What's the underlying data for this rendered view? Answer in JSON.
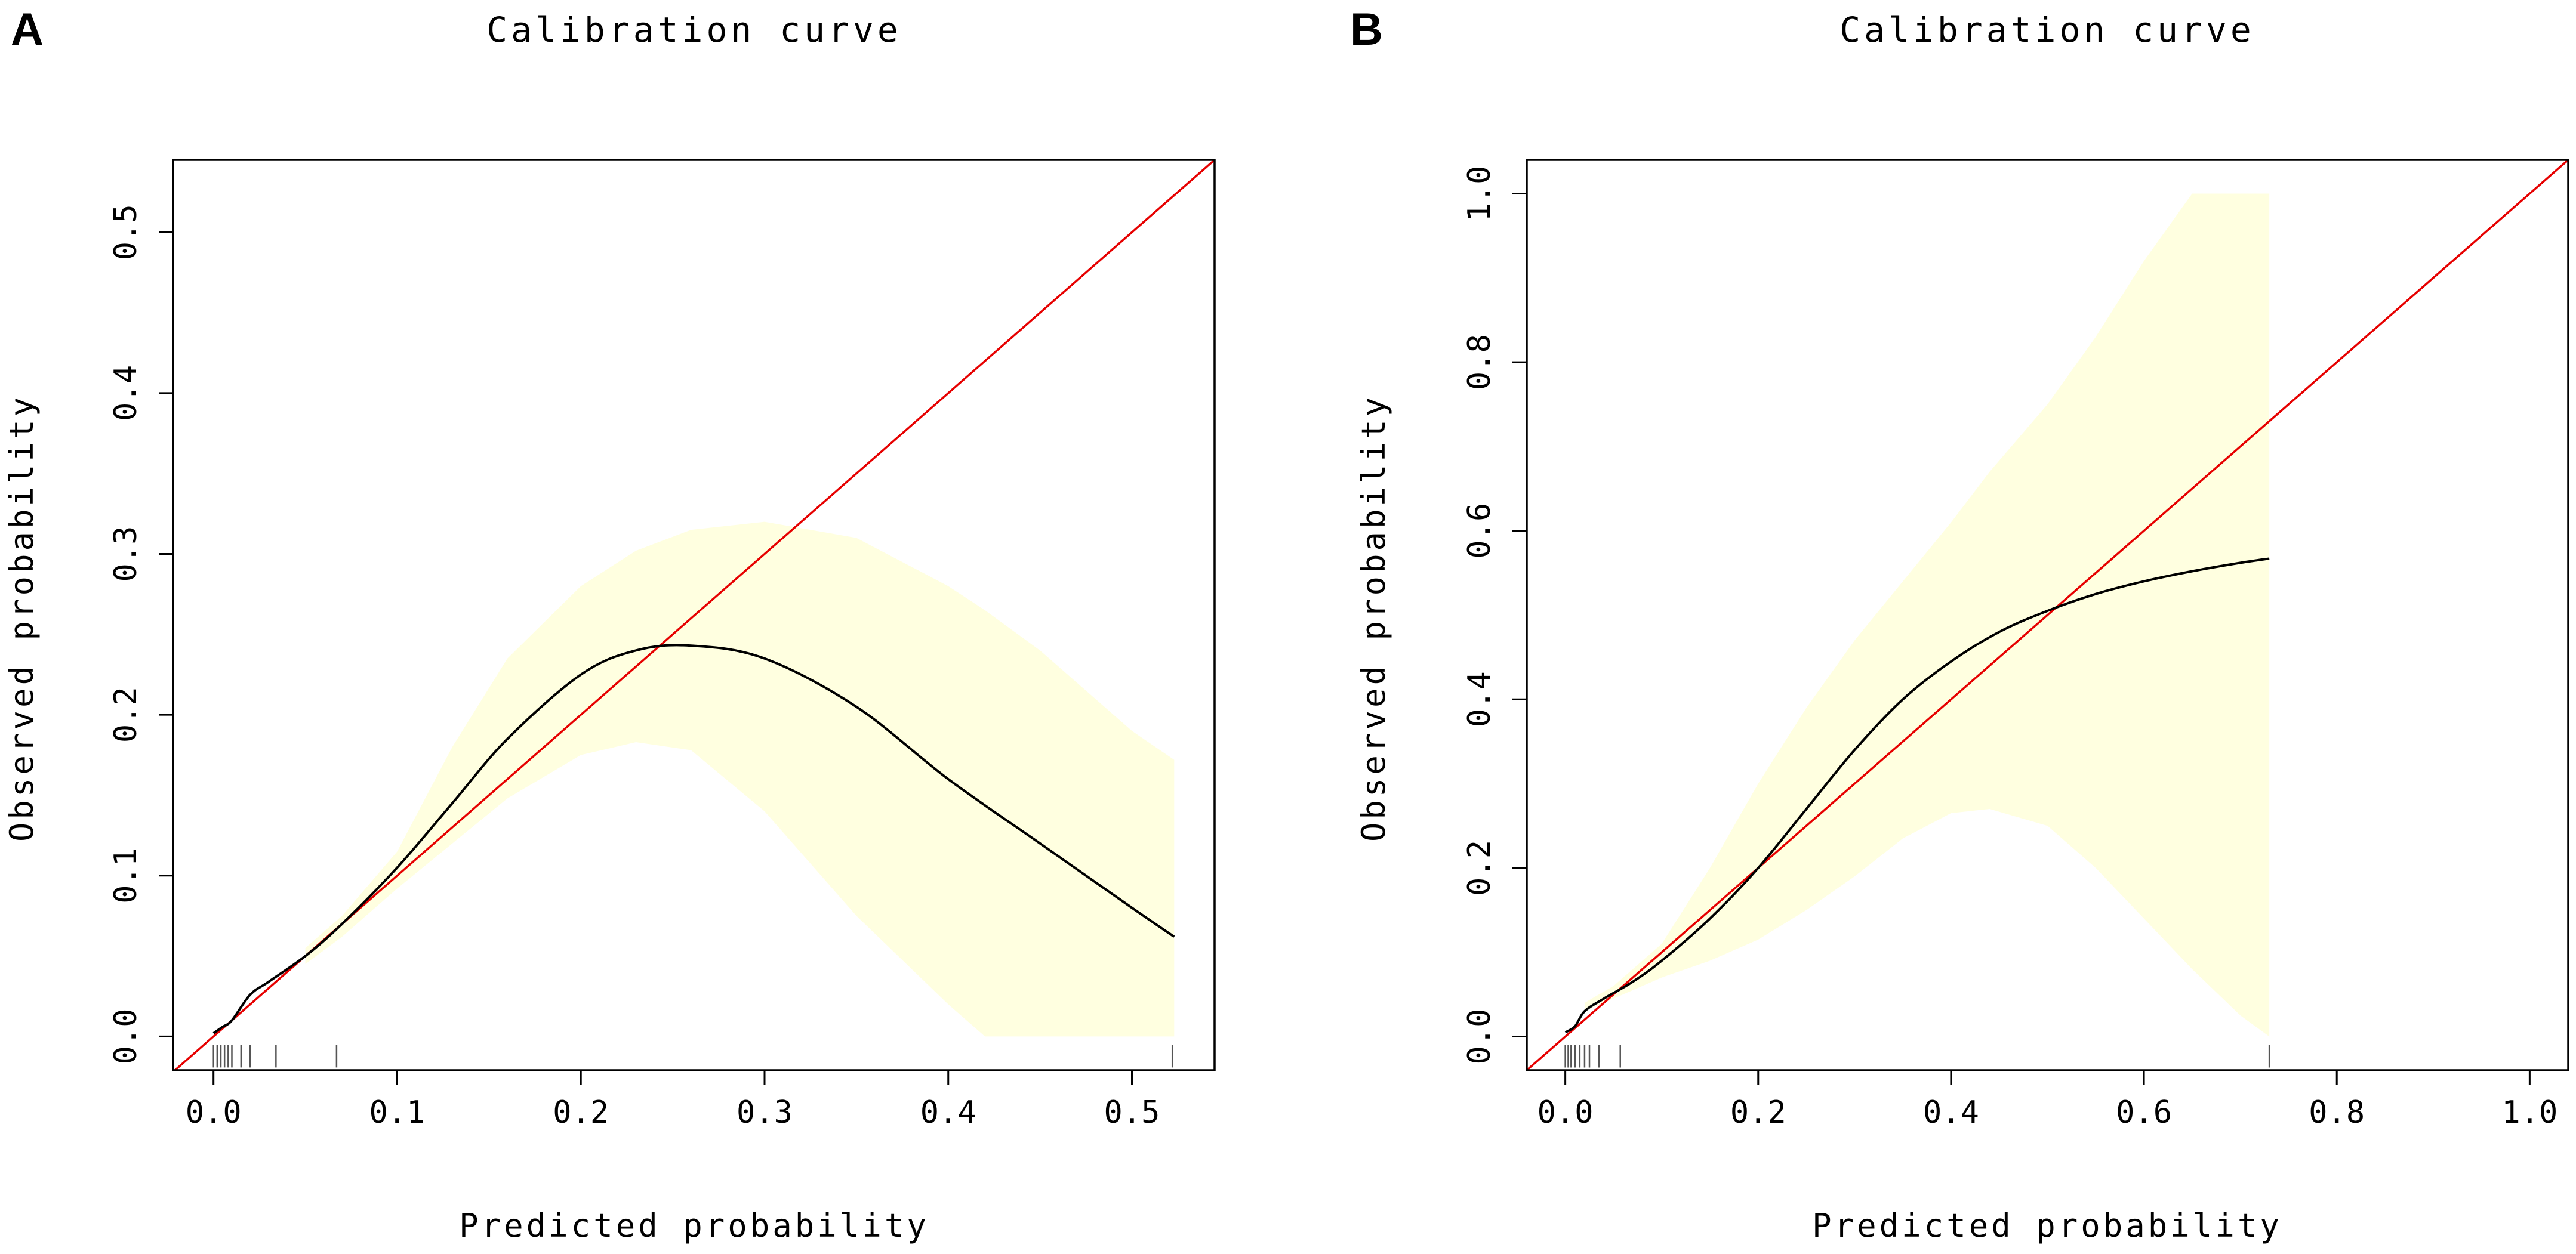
{
  "chart_data": [
    {
      "panel": "A",
      "type": "line",
      "title": "Calibration curve",
      "xlabel": "Predicted probability",
      "ylabel": "Observed probability",
      "xlim": [
        -0.022,
        0.545
      ],
      "ylim": [
        -0.021,
        0.545
      ],
      "xticks": [
        0.0,
        0.1,
        0.2,
        0.3,
        0.4,
        0.5
      ],
      "xtick_labels": [
        "0.0",
        "0.1",
        "0.2",
        "0.3",
        "0.4",
        "0.5"
      ],
      "yticks": [
        0.0,
        0.1,
        0.2,
        0.3,
        0.4,
        0.5
      ],
      "ytick_labels": [
        "0.0",
        "0.1",
        "0.2",
        "0.3",
        "0.4",
        "0.5"
      ],
      "reference_line": {
        "name": "ideal",
        "color": "#e60000",
        "x": [
          -0.022,
          0.545
        ],
        "y": [
          -0.022,
          0.545
        ]
      },
      "calibration_curve": {
        "name": "calibration",
        "color": "#000000",
        "x": [
          0.0,
          0.005,
          0.01,
          0.02,
          0.03,
          0.05,
          0.07,
          0.1,
          0.13,
          0.16,
          0.2,
          0.23,
          0.26,
          0.3,
          0.35,
          0.4,
          0.45,
          0.5,
          0.523
        ],
        "y": [
          0.002,
          0.006,
          0.01,
          0.026,
          0.034,
          0.05,
          0.07,
          0.105,
          0.145,
          0.185,
          0.225,
          0.24,
          0.243,
          0.235,
          0.205,
          0.16,
          0.12,
          0.08,
          0.062
        ]
      },
      "confidence_band": {
        "color": "#ffffe0",
        "x": [
          0.05,
          0.07,
          0.1,
          0.13,
          0.16,
          0.2,
          0.23,
          0.26,
          0.3,
          0.35,
          0.4,
          0.42,
          0.45,
          0.5,
          0.523
        ],
        "lower": [
          0.045,
          0.062,
          0.092,
          0.12,
          0.148,
          0.175,
          0.183,
          0.178,
          0.14,
          0.075,
          0.02,
          0.0,
          0.0,
          0.0,
          0.0
        ],
        "upper": [
          0.055,
          0.075,
          0.115,
          0.18,
          0.235,
          0.28,
          0.302,
          0.315,
          0.32,
          0.31,
          0.28,
          0.265,
          0.24,
          0.19,
          0.172
        ]
      },
      "rug": [
        0.0,
        0.002,
        0.004,
        0.006,
        0.008,
        0.01,
        0.015,
        0.02,
        0.034,
        0.067,
        0.522
      ]
    },
    {
      "panel": "B",
      "type": "line",
      "title": "Calibration curve",
      "xlabel": "Predicted probability",
      "ylabel": "Observed probability",
      "xlim": [
        -0.04,
        1.04
      ],
      "ylim": [
        -0.04,
        1.04
      ],
      "xticks": [
        0.0,
        0.2,
        0.4,
        0.6,
        0.8,
        1.0
      ],
      "xtick_labels": [
        "0.0",
        "0.2",
        "0.4",
        "0.6",
        "0.8",
        "1.0"
      ],
      "yticks": [
        0.0,
        0.2,
        0.4,
        0.6,
        0.8,
        1.0
      ],
      "ytick_labels": [
        "0.0",
        "0.2",
        "0.4",
        "0.6",
        "0.8",
        "1.0"
      ],
      "reference_line": {
        "name": "ideal",
        "color": "#e60000",
        "x": [
          -0.04,
          1.04
        ],
        "y": [
          -0.04,
          1.04
        ]
      },
      "calibration_curve": {
        "name": "calibration",
        "color": "#000000",
        "x": [
          0.0,
          0.01,
          0.02,
          0.04,
          0.07,
          0.1,
          0.15,
          0.2,
          0.25,
          0.3,
          0.35,
          0.4,
          0.45,
          0.5,
          0.55,
          0.6,
          0.65,
          0.7,
          0.73
        ],
        "y": [
          0.005,
          0.012,
          0.03,
          0.045,
          0.065,
          0.09,
          0.14,
          0.2,
          0.27,
          0.34,
          0.4,
          0.445,
          0.48,
          0.505,
          0.525,
          0.54,
          0.552,
          0.562,
          0.567
        ]
      },
      "confidence_band": {
        "color": "#ffffe0",
        "x": [
          0.02,
          0.05,
          0.1,
          0.15,
          0.2,
          0.25,
          0.3,
          0.35,
          0.4,
          0.44,
          0.5,
          0.55,
          0.6,
          0.65,
          0.7,
          0.73
        ],
        "lower": [
          0.03,
          0.045,
          0.07,
          0.09,
          0.115,
          0.15,
          0.19,
          0.235,
          0.265,
          0.27,
          0.25,
          0.2,
          0.14,
          0.08,
          0.025,
          0.0
        ],
        "upper": [
          0.04,
          0.06,
          0.11,
          0.2,
          0.3,
          0.39,
          0.47,
          0.54,
          0.61,
          0.67,
          0.75,
          0.83,
          0.92,
          1.0,
          1.0,
          1.0
        ]
      },
      "rug": [
        0.0,
        0.003,
        0.006,
        0.01,
        0.015,
        0.02,
        0.025,
        0.035,
        0.057,
        0.73
      ]
    }
  ]
}
